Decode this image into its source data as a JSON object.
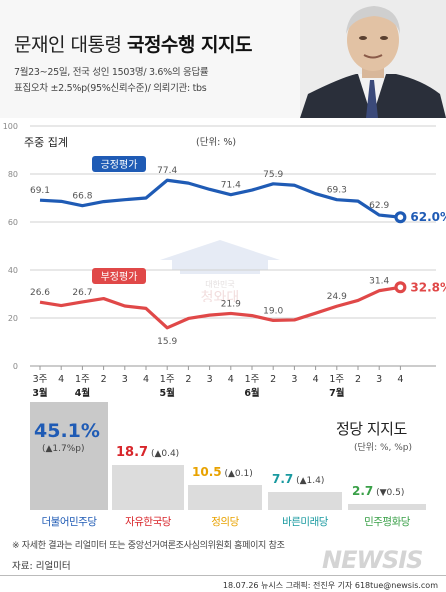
{
  "title": {
    "normal": "문재인 대통령 ",
    "bold": "국정수행 지지도"
  },
  "survey": {
    "line1": "7월23~25일, 전국 성인 1503명/ 3.6%의 응답률",
    "line2": "표집오차 ±2.5%p(95%신뢰수준)/ 의뢰기관: tbs"
  },
  "weekly_label": "주중 집계",
  "unit_label": "(단위: %)",
  "chart_data": [
    {
      "type": "line",
      "x": [
        "3주|3월",
        "4",
        "1주|4월",
        "2",
        "3",
        "4",
        "1주|5월",
        "2",
        "3",
        "4",
        "1주|6월",
        "2",
        "3",
        "4",
        "1주|7월",
        "2",
        "3",
        "4"
      ],
      "ylim": [
        0,
        100
      ],
      "yticks": [
        0,
        20,
        40,
        60,
        80,
        100
      ],
      "grid": true,
      "series": [
        {
          "name": "긍정평가",
          "color": "#1f5bb5",
          "values": [
            69.1,
            68.6,
            66.8,
            68.5,
            69.3,
            70.0,
            77.4,
            76.2,
            73.6,
            71.4,
            73.3,
            75.9,
            75.3,
            71.8,
            69.3,
            68.7,
            62.9,
            62.0
          ],
          "labels": [
            "69.1",
            "",
            "66.8",
            "",
            "",
            "",
            "77.4",
            "",
            "",
            "71.4",
            "",
            "75.9",
            "",
            "",
            "69.3",
            "",
            "62.9",
            "62.0%"
          ]
        },
        {
          "name": "부정평가",
          "color": "#e04848",
          "values": [
            26.6,
            25.2,
            26.7,
            28.1,
            25.0,
            24.0,
            15.9,
            19.8,
            21.2,
            21.9,
            21.0,
            19.0,
            19.2,
            22.0,
            24.9,
            27.3,
            31.4,
            32.8
          ],
          "labels": [
            "26.6",
            "",
            "26.7",
            "",
            "",
            "",
            "15.9",
            "",
            "",
            "21.9",
            "",
            "19.0",
            "",
            "",
            "24.9",
            "",
            "31.4",
            "32.8%"
          ]
        }
      ]
    },
    {
      "type": "bar",
      "title": "정당 지지도",
      "unit": "(단위: %, %p)",
      "categories": [
        "더불어민주당",
        "자유한국당",
        "정의당",
        "바른미래당",
        "민주평화당"
      ],
      "values": [
        45.1,
        18.7,
        10.5,
        7.7,
        2.7
      ],
      "value_labels": [
        "45.1%",
        "18.7",
        "10.5",
        "7.7",
        "2.7"
      ],
      "changes": [
        "(▲1.7%p)",
        "(▲0.4)",
        "(▲0.1)",
        "(▲1.4)",
        "(▼0.5)"
      ],
      "colors": [
        "#1f5bb5",
        "#d8262b",
        "#e8a200",
        "#1a9aa0",
        "#3aa048"
      ]
    }
  ],
  "footnote": "※ 자세한 결과는 리얼미터 또는 중앙선거여론조사심의위원회 홈페이지 참조",
  "source": "자료: 리얼미터",
  "credit": "18.07.26  뉴시스 그래픽: 전진우 기자  618tue@newsis.com",
  "watermark": "NEWSIS",
  "seal_text": "청와대",
  "seal_small": "대한민국"
}
